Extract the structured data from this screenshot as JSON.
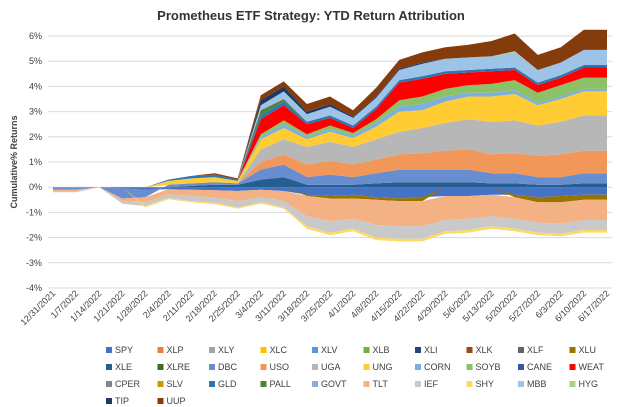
{
  "chart_data": {
    "type": "area",
    "stacked": true,
    "title": "Prometheus ETF Strategy: YTD Return Attribution",
    "xlabel": "",
    "ylabel": "Cumulative% Returns",
    "ylim": [
      -4,
      6
    ],
    "yticks": [
      "-4%",
      "-3%",
      "-2%",
      "-1%",
      "0%",
      "1%",
      "2%",
      "3%",
      "4%",
      "5%",
      "6%"
    ],
    "grid": true,
    "legend_position": "bottom",
    "x": [
      "12/31/2021",
      "1/7/2022",
      "1/14/2022",
      "1/21/2022",
      "1/28/2022",
      "2/4/2022",
      "2/11/2022",
      "2/18/2022",
      "2/25/2022",
      "3/4/2022",
      "3/11/2022",
      "3/18/2022",
      "3/25/2022",
      "4/1/2022",
      "4/8/2022",
      "4/15/2022",
      "4/22/2022",
      "4/29/2022",
      "5/6/2022",
      "5/13/2022",
      "5/20/2022",
      "5/27/2022",
      "6/3/2022",
      "6/10/2022",
      "6/17/2022"
    ],
    "series": [
      {
        "name": "SPY",
        "color": "#4472c4",
        "values": [
          0,
          0,
          0,
          -0.05,
          -0.1,
          -0.08,
          -0.1,
          -0.12,
          -0.15,
          -0.1,
          -0.15,
          -0.3,
          -0.35,
          -0.3,
          -0.4,
          -0.45,
          -0.4,
          -0.35,
          -0.35,
          -0.3,
          -0.3,
          -0.4,
          -0.35,
          -0.3,
          -0.3
        ]
      },
      {
        "name": "XLP",
        "color": "#ed7d31",
        "values": [
          0,
          0,
          0,
          0,
          0,
          0,
          0,
          0,
          0,
          0,
          0,
          0,
          0,
          0,
          0,
          0,
          0,
          0,
          0,
          0,
          0,
          0,
          0,
          0,
          0
        ]
      },
      {
        "name": "XLY",
        "color": "#a5a5a5",
        "values": [
          0,
          0,
          0,
          0,
          0,
          0,
          0,
          0,
          0,
          0,
          0,
          0,
          0,
          0,
          0,
          0,
          0,
          0,
          0,
          0,
          0,
          0,
          0,
          0,
          0
        ]
      },
      {
        "name": "XLC",
        "color": "#ffc000",
        "values": [
          0,
          0,
          0,
          0,
          0,
          0,
          0,
          0,
          0,
          0,
          0,
          0,
          0,
          0,
          0,
          0,
          0,
          0,
          0,
          0,
          0,
          0,
          0,
          0,
          0
        ]
      },
      {
        "name": "XLV",
        "color": "#5b9bd5",
        "values": [
          0,
          0,
          0,
          0,
          0,
          0,
          0,
          0,
          0,
          0,
          0,
          0,
          0,
          0,
          0,
          0,
          0,
          0,
          0,
          0,
          0,
          0,
          0,
          0,
          0
        ]
      },
      {
        "name": "XLB",
        "color": "#70ad47",
        "values": [
          0,
          0,
          0,
          0,
          0,
          0,
          0,
          0,
          0,
          0,
          0,
          0,
          0,
          0,
          0,
          0,
          0,
          0,
          0,
          0,
          0,
          0,
          0,
          0,
          0
        ]
      },
      {
        "name": "XLI",
        "color": "#264478",
        "values": [
          0,
          0,
          0,
          0,
          0,
          0,
          0,
          0,
          0,
          0,
          0,
          0,
          0,
          0,
          0,
          0,
          0,
          0,
          0,
          0,
          0,
          0,
          0,
          0,
          0
        ]
      },
      {
        "name": "XLK",
        "color": "#9e480e",
        "values": [
          0,
          0,
          0,
          0,
          0,
          0,
          0,
          0,
          0,
          0,
          0,
          0,
          0,
          0,
          0,
          0,
          0,
          0,
          0,
          0,
          0,
          0,
          0,
          0,
          0
        ]
      },
      {
        "name": "XLF",
        "color": "#636363",
        "values": [
          0,
          0,
          0,
          0,
          0,
          0,
          0,
          0,
          0,
          0,
          0,
          0,
          0,
          0,
          0,
          0,
          0,
          0,
          0,
          0,
          0,
          0,
          0,
          0,
          0
        ]
      },
      {
        "name": "XLU",
        "color": "#997300",
        "values": [
          0,
          0,
          0,
          0,
          0,
          0,
          0,
          0,
          0,
          0,
          0,
          -0.05,
          -0.1,
          -0.15,
          -0.1,
          -0.1,
          -0.15,
          0,
          0,
          0,
          -0.1,
          -0.2,
          -0.25,
          -0.2,
          -0.2
        ]
      },
      {
        "name": "XLE",
        "color": "#255e91",
        "values": [
          0,
          0,
          0,
          0,
          0,
          0,
          0.05,
          0.1,
          0.1,
          0.3,
          0.4,
          0.1,
          0.1,
          0.1,
          0.15,
          0.2,
          0.2,
          0.2,
          0.2,
          0.15,
          0.15,
          0.1,
          0.1,
          0.15,
          0.15
        ]
      },
      {
        "name": "XLRE",
        "color": "#43682b",
        "values": [
          0,
          0,
          0,
          0,
          0,
          0,
          0,
          0,
          0,
          0,
          0,
          0,
          0,
          0,
          0,
          0,
          0,
          0,
          0,
          0,
          0,
          0,
          0,
          0,
          0
        ]
      },
      {
        "name": "DBC",
        "color": "#698ed0",
        "values": [
          -0.1,
          -0.1,
          0,
          -0.4,
          -0.3,
          0.1,
          0.1,
          0.1,
          0.05,
          0.4,
          0.5,
          0.3,
          0.4,
          0.3,
          0.4,
          0.5,
          0.5,
          0.5,
          0.5,
          0.4,
          0.4,
          0.3,
          0.3,
          0.4,
          0.4
        ]
      },
      {
        "name": "USO",
        "color": "#f1975a",
        "values": [
          0,
          0,
          0,
          0,
          0,
          0,
          0,
          0,
          0,
          0.3,
          0.4,
          0.5,
          0.55,
          0.5,
          0.55,
          0.6,
          0.65,
          0.75,
          0.8,
          0.75,
          0.8,
          0.85,
          0.9,
          0.9,
          0.9
        ]
      },
      {
        "name": "UGA",
        "color": "#b7b7b7",
        "values": [
          0,
          0,
          0,
          0,
          0,
          0,
          0,
          0,
          0,
          0.5,
          0.6,
          0.7,
          0.75,
          0.7,
          0.8,
          0.9,
          1.0,
          1.1,
          1.2,
          1.3,
          1.3,
          1.2,
          1.3,
          1.4,
          1.4
        ]
      },
      {
        "name": "UNG",
        "color": "#ffcd33",
        "values": [
          0,
          0,
          0,
          0,
          0,
          0.15,
          0.2,
          0.2,
          0.1,
          0.4,
          0.45,
          0.3,
          0.4,
          0.35,
          0.5,
          0.8,
          0.7,
          0.85,
          0.9,
          1.0,
          1.05,
          0.8,
          0.9,
          0.95,
          0.95
        ]
      },
      {
        "name": "CORN",
        "color": "#7cafdd",
        "values": [
          0,
          0,
          0,
          0,
          0,
          0,
          0,
          0,
          0,
          0.1,
          0.15,
          0.1,
          0.1,
          0.1,
          0.15,
          0.2,
          0.25,
          0.2,
          0.15,
          0.15,
          0.15,
          0.1,
          0.1,
          0.1,
          0.1
        ]
      },
      {
        "name": "SOYB",
        "color": "#8cc168",
        "values": [
          0,
          0,
          0,
          0,
          0,
          0,
          0,
          0,
          0,
          0.1,
          0.15,
          0.1,
          0.15,
          0.1,
          0.15,
          0.25,
          0.3,
          0.3,
          0.3,
          0.35,
          0.4,
          0.4,
          0.45,
          0.45,
          0.45
        ]
      },
      {
        "name": "CANE",
        "color": "#335aa1",
        "values": [
          0,
          0,
          0,
          0,
          0,
          0,
          0,
          0,
          0,
          0,
          0,
          0,
          0,
          0,
          0,
          0,
          0,
          0,
          0,
          0,
          0,
          0,
          0,
          0,
          0
        ]
      },
      {
        "name": "WEAT",
        "color": "#ff0000",
        "values": [
          0,
          0,
          0,
          0,
          0,
          0,
          0,
          0,
          0,
          0.6,
          0.6,
          0.4,
          0.3,
          0.2,
          0.4,
          0.7,
          0.7,
          0.6,
          0.5,
          0.5,
          0.4,
          0.3,
          0.3,
          0.4,
          0.4
        ]
      },
      {
        "name": "CPER",
        "color": "#848484",
        "values": [
          0,
          0,
          0,
          0,
          0,
          0,
          0,
          0,
          0,
          0,
          0,
          0,
          0,
          0,
          0,
          0,
          0,
          0,
          0,
          0,
          0,
          0,
          0,
          0,
          0
        ]
      },
      {
        "name": "SLV",
        "color": "#cc9a00",
        "values": [
          0,
          0,
          0,
          0,
          0,
          0,
          0,
          0,
          0,
          0,
          0,
          0,
          0,
          0,
          0,
          0,
          0,
          0,
          0,
          0,
          0,
          0,
          0,
          0,
          0
        ]
      },
      {
        "name": "GLD",
        "color": "#2e75b6",
        "values": [
          0,
          0,
          0,
          0,
          0,
          0.05,
          0.1,
          0.1,
          0.05,
          0.15,
          0.15,
          0.1,
          0.1,
          0.1,
          0.1,
          0.1,
          0.1,
          0.1,
          0.1,
          0.1,
          0.1,
          0.1,
          0.1,
          0.1,
          0.1
        ]
      },
      {
        "name": "PALL",
        "color": "#548235",
        "values": [
          0,
          0,
          0,
          0,
          0,
          0,
          0,
          0,
          0,
          0.2,
          0.1,
          0,
          0,
          0,
          0,
          0,
          0,
          0,
          0,
          0,
          0,
          0,
          0,
          0,
          0
        ]
      },
      {
        "name": "GOVT",
        "color": "#8faadc",
        "values": [
          0,
          0,
          0,
          0,
          0,
          0,
          0,
          0,
          0,
          0,
          0,
          0,
          0,
          0,
          0,
          0,
          0,
          0,
          0,
          0,
          0,
          0,
          0,
          0,
          0
        ]
      },
      {
        "name": "TLT",
        "color": "#f4b183",
        "values": [
          -0.05,
          -0.05,
          0,
          -0.1,
          -0.2,
          -0.2,
          -0.25,
          -0.3,
          -0.4,
          -0.3,
          -0.4,
          -0.8,
          -0.9,
          -0.8,
          -1.0,
          -1.0,
          -1.0,
          -0.95,
          -0.9,
          -0.85,
          -0.85,
          -0.8,
          -0.85,
          -0.8,
          -0.8
        ]
      },
      {
        "name": "IEF",
        "color": "#c9c9c9",
        "values": [
          -0.05,
          -0.05,
          0,
          -0.1,
          -0.15,
          -0.15,
          -0.2,
          -0.2,
          -0.25,
          -0.2,
          -0.25,
          -0.4,
          -0.45,
          -0.4,
          -0.5,
          -0.5,
          -0.5,
          -0.45,
          -0.45,
          -0.4,
          -0.4,
          -0.4,
          -0.4,
          -0.4,
          -0.4
        ]
      },
      {
        "name": "SHY",
        "color": "#ffd966",
        "values": [
          0,
          0,
          0,
          0,
          -0.05,
          -0.05,
          -0.05,
          -0.05,
          -0.05,
          -0.05,
          -0.05,
          -0.1,
          -0.1,
          -0.1,
          -0.1,
          -0.1,
          -0.1,
          -0.1,
          -0.1,
          -0.1,
          -0.1,
          -0.1,
          -0.1,
          -0.1,
          -0.1
        ]
      },
      {
        "name": "MBB",
        "color": "#9dc3e6",
        "values": [
          0,
          0,
          0,
          0,
          0,
          0,
          0,
          0,
          0,
          0.2,
          0.3,
          0.3,
          0.35,
          0.3,
          0.35,
          0.4,
          0.5,
          0.5,
          0.5,
          0.5,
          0.6,
          0.5,
          0.5,
          0.6,
          0.6
        ]
      },
      {
        "name": "HYG",
        "color": "#a9d18e",
        "values": [
          0,
          0,
          0,
          0,
          0,
          0,
          0,
          0,
          0,
          0,
          0,
          0,
          0,
          0,
          0,
          0,
          0,
          0,
          0,
          0,
          0.05,
          0,
          0,
          0,
          0
        ]
      },
      {
        "name": "TIP",
        "color": "#1f3864",
        "values": [
          0,
          0,
          0,
          0,
          0,
          0,
          0,
          0,
          0,
          0.2,
          0.2,
          0.1,
          0.1,
          0.05,
          0.05,
          0.05,
          0.05,
          0,
          0,
          0,
          0,
          0,
          0,
          0,
          0
        ]
      },
      {
        "name": "UUP",
        "color": "#843c0c",
        "values": [
          0,
          0,
          0,
          0,
          0,
          0,
          0,
          0.05,
          0.05,
          0.2,
          0.2,
          0.3,
          0.3,
          0.25,
          0.35,
          0.35,
          0.4,
          0.45,
          0.5,
          0.6,
          0.7,
          0.6,
          0.6,
          0.8,
          0.8
        ]
      }
    ]
  }
}
